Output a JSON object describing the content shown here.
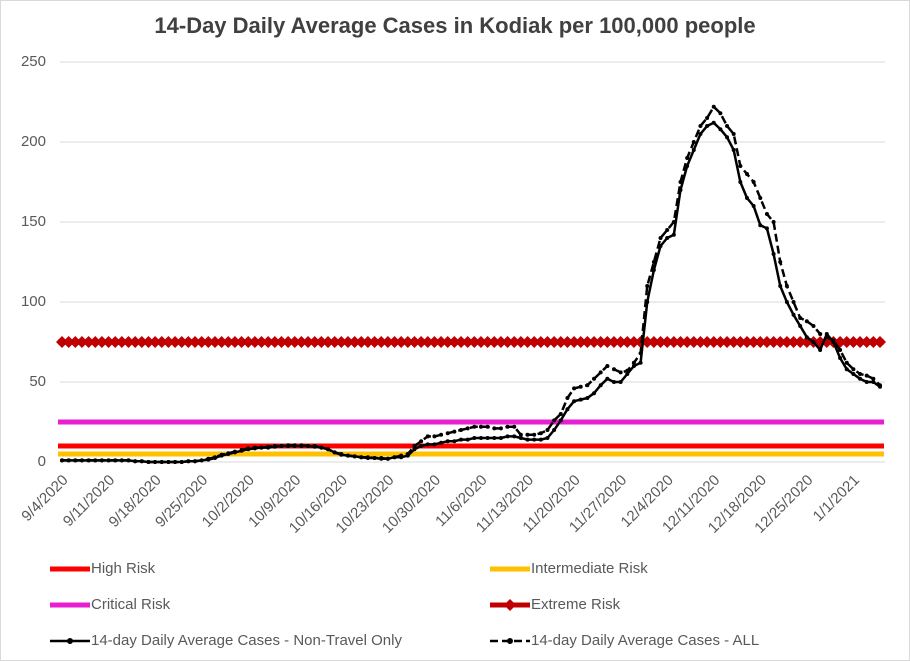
{
  "chart_data": {
    "type": "line",
    "title": "14-Day Daily Average Cases in Kodiak per 100,000 people",
    "categories": [
      "9/4/2020",
      null,
      null,
      null,
      null,
      null,
      null,
      "9/11/2020",
      null,
      null,
      null,
      null,
      null,
      null,
      "9/18/2020",
      null,
      null,
      null,
      null,
      null,
      null,
      "9/25/2020",
      null,
      null,
      null,
      null,
      null,
      null,
      "10/2/2020",
      null,
      null,
      null,
      null,
      null,
      null,
      "10/9/2020",
      null,
      null,
      null,
      null,
      null,
      null,
      "10/16/2020",
      null,
      null,
      null,
      null,
      null,
      null,
      "10/23/2020",
      null,
      null,
      null,
      null,
      null,
      null,
      "10/30/2020",
      null,
      null,
      null,
      null,
      null,
      null,
      "11/6/2020",
      null,
      null,
      null,
      null,
      null,
      null,
      "11/13/2020",
      null,
      null,
      null,
      null,
      null,
      null,
      "11/20/2020",
      null,
      null,
      null,
      null,
      null,
      null,
      "11/27/2020",
      null,
      null,
      null,
      null,
      null,
      null,
      "12/4/2020",
      null,
      null,
      null,
      null,
      null,
      null,
      "12/11/2020",
      null,
      null,
      null,
      null,
      null,
      null,
      "12/18/2020",
      null,
      null,
      null,
      null,
      null,
      null,
      "12/25/2020",
      null,
      null,
      null,
      null,
      null,
      null,
      "1/1/2021",
      null,
      null,
      null,
      null
    ],
    "thresholds": [
      {
        "name": "High Risk",
        "color": "#ff0000",
        "value": 10
      },
      {
        "name": "Intermediate Risk",
        "color": "#ffc000",
        "value": 5
      },
      {
        "name": "Critical Risk",
        "color": "#e81ed2",
        "value": 25
      },
      {
        "name": "Extreme Risk",
        "color": "#c00000",
        "value": 75,
        "marker": "diamond"
      }
    ],
    "series": [
      {
        "name": "14-day Daily Average Cases - Non-Travel Only",
        "color": "#000000",
        "dash": false,
        "values": [
          1,
          1,
          1,
          1,
          1,
          1,
          1,
          1,
          1,
          1,
          1,
          0.5,
          0.5,
          0,
          0,
          0,
          0,
          0,
          0,
          0.5,
          0.5,
          1,
          1.5,
          2.5,
          4,
          5,
          6,
          7,
          8,
          8.5,
          9,
          9,
          9.5,
          10,
          10,
          10,
          10,
          10,
          9.5,
          9,
          8,
          6,
          4.5,
          4,
          3.5,
          3,
          2.5,
          2.5,
          2,
          2,
          3,
          3,
          4,
          8,
          10,
          11,
          11,
          12,
          13,
          13,
          14,
          14,
          15,
          15,
          15,
          15,
          15,
          16,
          16,
          15,
          14,
          14,
          14,
          15,
          20,
          26,
          33,
          38,
          39,
          40,
          43,
          48,
          52,
          50,
          50,
          55,
          60,
          62,
          100,
          120,
          135,
          140,
          142,
          170,
          185,
          195,
          205,
          210,
          212,
          208,
          203,
          195,
          175,
          165,
          160,
          148,
          146,
          130,
          110,
          100,
          92,
          85,
          78,
          75,
          70,
          80,
          75,
          65,
          58,
          55,
          52,
          50,
          50,
          47
        ]
      },
      {
        "name": "14-day Daily Average Cases - ALL",
        "color": "#000000",
        "dash": true,
        "values": [
          1,
          1,
          1,
          1,
          1,
          1,
          1,
          1,
          1,
          1,
          1,
          0.5,
          0.5,
          0,
          0,
          0,
          0,
          0,
          0,
          0.5,
          0.5,
          1,
          2,
          3,
          4.5,
          5.5,
          6.5,
          7.5,
          8.5,
          9,
          9,
          9.5,
          10,
          10,
          10.5,
          10.5,
          10.5,
          10,
          10,
          9,
          8,
          6,
          5,
          4,
          3.5,
          3,
          3,
          2.5,
          2.5,
          2,
          3,
          4,
          5,
          10,
          13,
          16,
          16,
          17,
          18,
          19,
          20,
          21,
          22,
          22,
          22,
          21,
          21,
          22,
          22,
          17,
          17,
          17,
          18,
          20,
          26,
          30,
          40,
          46,
          47,
          48,
          52,
          56,
          60,
          58,
          56,
          57,
          62,
          68,
          110,
          125,
          140,
          145,
          150,
          175,
          190,
          200,
          210,
          215,
          222,
          218,
          210,
          205,
          185,
          180,
          175,
          165,
          155,
          150,
          125,
          110,
          100,
          90,
          88,
          85,
          80,
          78,
          76,
          70,
          62,
          58,
          55,
          54,
          52,
          48
        ]
      }
    ],
    "ylim": [
      0,
      250
    ],
    "yticks": [
      0,
      50,
      100,
      150,
      200,
      250
    ],
    "grid": true
  }
}
